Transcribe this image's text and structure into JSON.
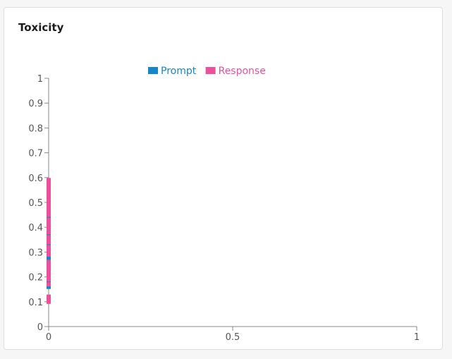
{
  "card": {
    "title": "Toxicity"
  },
  "colors": {
    "prompt": "#1586c9",
    "response": "#ec4f9b",
    "axis": "#888888",
    "tick_text": "#555555"
  },
  "chart_data": {
    "type": "scatter",
    "title": "Toxicity",
    "xlabel": "",
    "ylabel": "",
    "xlim": [
      0,
      1
    ],
    "ylim": [
      0,
      1
    ],
    "x_ticks": [
      {
        "value": 0,
        "label": "0"
      },
      {
        "value": 0.5,
        "label": "0.5"
      },
      {
        "value": 1,
        "label": "1"
      }
    ],
    "y_ticks": [
      {
        "value": 0,
        "label": "0"
      },
      {
        "value": 0.1,
        "label": "0.1"
      },
      {
        "value": 0.2,
        "label": "0.2"
      },
      {
        "value": 0.3,
        "label": "0.3"
      },
      {
        "value": 0.4,
        "label": "0.4"
      },
      {
        "value": 0.5,
        "label": "0.5"
      },
      {
        "value": 0.6,
        "label": "0.6"
      },
      {
        "value": 0.7,
        "label": "0.7"
      },
      {
        "value": 0.8,
        "label": "0.8"
      },
      {
        "value": 0.9,
        "label": "0.9"
      },
      {
        "value": 1,
        "label": "1"
      }
    ],
    "grid": false,
    "legend_position": "top-center",
    "series": [
      {
        "name": "Prompt",
        "color": "#1586c9",
        "x": [
          0,
          0,
          0,
          0,
          0,
          0,
          0,
          0,
          0,
          0,
          0,
          0,
          0,
          0,
          0,
          0,
          0,
          0,
          0,
          0
        ],
        "y": [
          0.12,
          0.16,
          0.18,
          0.2,
          0.22,
          0.25,
          0.27,
          0.28,
          0.3,
          0.33,
          0.35,
          0.37,
          0.4,
          0.42,
          0.44,
          0.47,
          0.49,
          0.52,
          0.55,
          0.56
        ]
      },
      {
        "name": "Response",
        "color": "#ec4f9b",
        "x": [
          0,
          0,
          0,
          0,
          0,
          0,
          0,
          0,
          0,
          0,
          0,
          0,
          0,
          0,
          0,
          0,
          0,
          0,
          0,
          0,
          0,
          0,
          0,
          0,
          0,
          0,
          0,
          0,
          0,
          0,
          0,
          0,
          0,
          0,
          0,
          0,
          0,
          0,
          0,
          0
        ],
        "y": [
          0.1,
          0.11,
          0.12,
          0.17,
          0.19,
          0.2,
          0.21,
          0.22,
          0.23,
          0.24,
          0.25,
          0.26,
          0.29,
          0.3,
          0.31,
          0.32,
          0.34,
          0.35,
          0.36,
          0.38,
          0.39,
          0.4,
          0.41,
          0.42,
          0.43,
          0.45,
          0.46,
          0.47,
          0.48,
          0.49,
          0.5,
          0.51,
          0.52,
          0.53,
          0.54,
          0.55,
          0.56,
          0.57,
          0.58,
          0.59
        ]
      }
    ]
  }
}
